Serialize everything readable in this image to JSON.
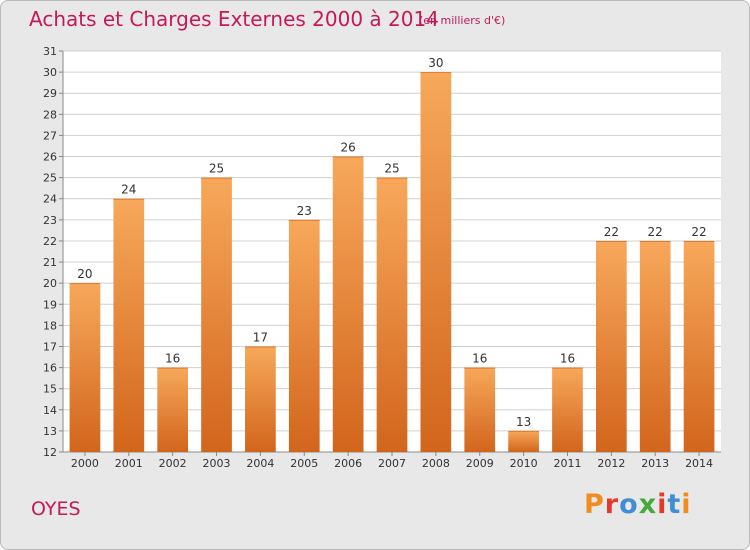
{
  "header": {
    "title": "Achats et Charges Externes 2000 à 2014",
    "unit": "(en milliers d'€)"
  },
  "footer": {
    "commune": "OYES",
    "logo": "Proxiti"
  },
  "colors": {
    "accent": "#c4195a",
    "bar_top": "#f7a85a",
    "bar_bottom": "#d2651c",
    "plot_bg": "#ffffff",
    "grid": "#d0d0d0",
    "logo_letters": [
      "#f28c1e",
      "#e23b2d",
      "#3f8fd2",
      "#49a83b",
      "#e23b2d",
      "#3f8fd2",
      "#f28c1e"
    ]
  },
  "chart_data": {
    "type": "bar",
    "title": "Achats et Charges Externes 2000 à 2014",
    "subtitle": "(en milliers d'€)",
    "xlabel": "",
    "ylabel": "",
    "categories": [
      "2000",
      "2001",
      "2002",
      "2003",
      "2004",
      "2005",
      "2006",
      "2007",
      "2008",
      "2009",
      "2010",
      "2011",
      "2012",
      "2013",
      "2014"
    ],
    "values": [
      20,
      24,
      16,
      25,
      17,
      23,
      26,
      25,
      30,
      16,
      13,
      16,
      22,
      22,
      22
    ],
    "ylim": [
      12,
      31
    ],
    "yticks": [
      12,
      13,
      14,
      15,
      16,
      17,
      18,
      19,
      20,
      21,
      22,
      23,
      24,
      25,
      26,
      27,
      28,
      29,
      30,
      31
    ],
    "grid": true,
    "data_labels": true,
    "legend": "none"
  }
}
